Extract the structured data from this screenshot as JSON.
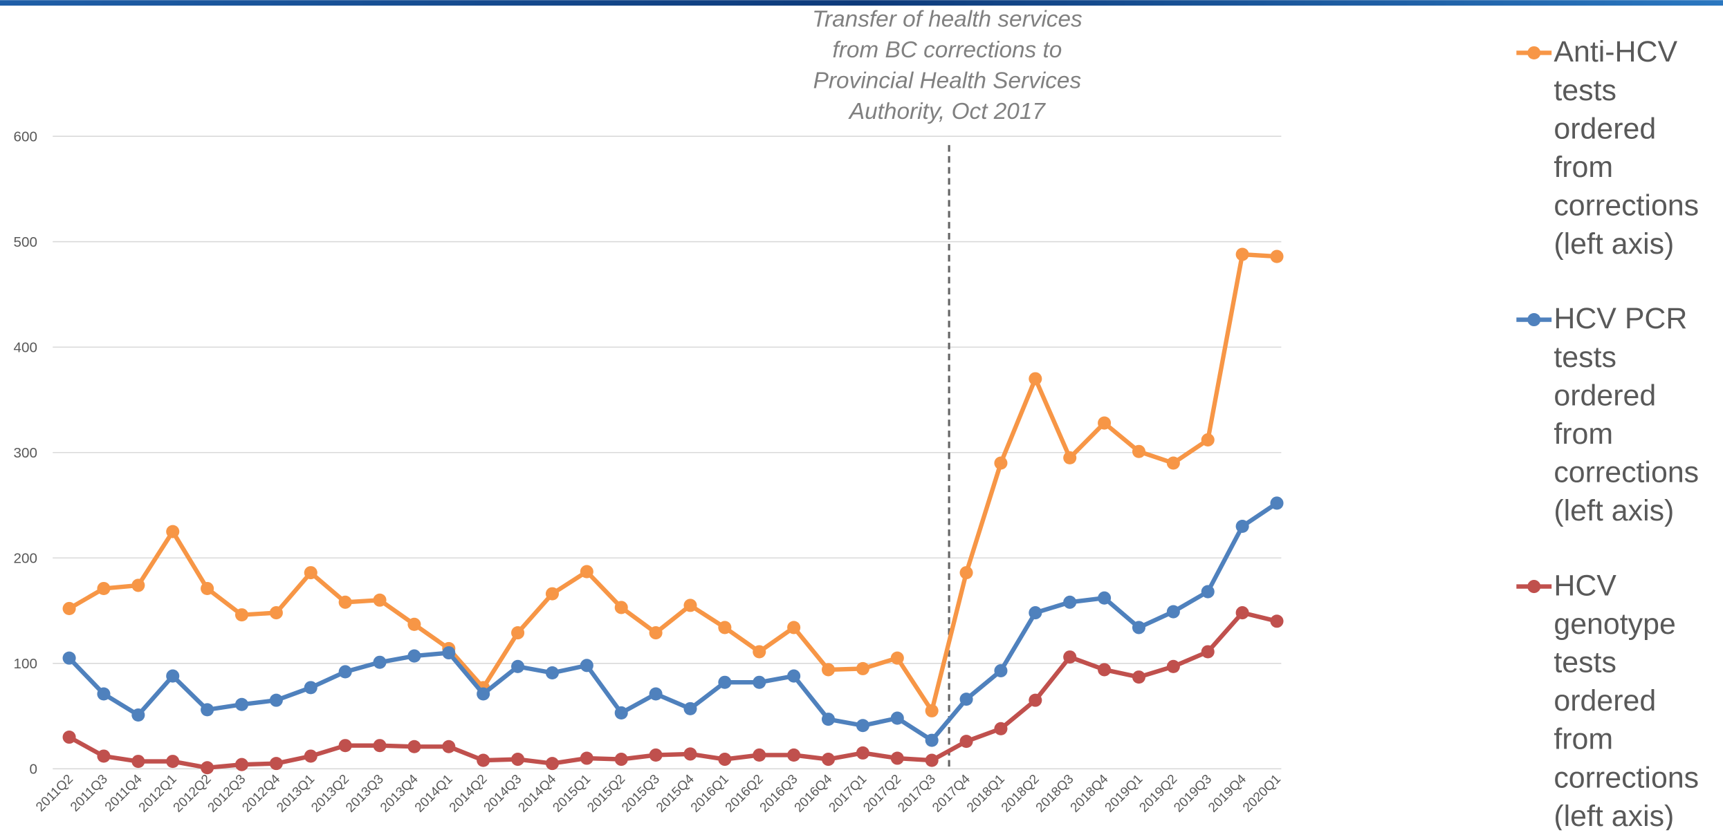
{
  "chart_data": {
    "type": "line",
    "annotation": "Transfer of health services from BC corrections to Provincial Health Services Authority, Oct 2017",
    "categories": [
      "2011Q2",
      "2011Q3",
      "2011Q4",
      "2012Q1",
      "2012Q2",
      "2012Q3",
      "2012Q4",
      "2013Q1",
      "2013Q2",
      "2013Q3",
      "2013Q4",
      "2014Q1",
      "2014Q2",
      "2014Q3",
      "2014Q4",
      "2015Q1",
      "2015Q2",
      "2015Q3",
      "2015Q4",
      "2016Q1",
      "2016Q2",
      "2016Q3",
      "2016Q4",
      "2017Q1",
      "2017Q2",
      "2017Q3",
      "2017Q4",
      "2018Q1",
      "2018Q2",
      "2018Q3",
      "2018Q4",
      "2019Q1",
      "2019Q2",
      "2019Q3",
      "2019Q4",
      "2020Q1"
    ],
    "series": [
      {
        "name": "Anti-HCV tests ordered from corrections (left axis)",
        "color": "#f79646",
        "values": [
          152,
          171,
          174,
          225,
          171,
          146,
          148,
          186,
          158,
          160,
          137,
          114,
          77,
          129,
          166,
          187,
          153,
          129,
          155,
          134,
          111,
          134,
          94,
          95,
          105,
          55,
          186,
          290,
          370,
          295,
          328,
          301,
          290,
          312,
          488,
          486
        ]
      },
      {
        "name": "HCV PCR tests ordered from corrections (left axis)",
        "color": "#4f81bd",
        "values": [
          105,
          71,
          51,
          88,
          56,
          61,
          65,
          77,
          92,
          101,
          107,
          110,
          71,
          97,
          91,
          98,
          53,
          71,
          57,
          82,
          82,
          88,
          47,
          41,
          48,
          27,
          66,
          93,
          148,
          158,
          162,
          134,
          149,
          168,
          230,
          252
        ]
      },
      {
        "name": "HCV genotype tests ordered from corrections (left axis)",
        "color": "#c0504d",
        "values": [
          30,
          12,
          7,
          7,
          1,
          4,
          5,
          12,
          22,
          22,
          21,
          21,
          8,
          9,
          5,
          10,
          9,
          13,
          14,
          9,
          13,
          13,
          9,
          15,
          10,
          8,
          26,
          38,
          65,
          106,
          94,
          87,
          97,
          111,
          148,
          140
        ]
      }
    ],
    "ylim": [
      0,
      600
    ],
    "yticks": [
      0,
      100,
      200,
      300,
      400,
      500,
      600
    ],
    "grid": true,
    "annotation_category": "2017Q3"
  }
}
